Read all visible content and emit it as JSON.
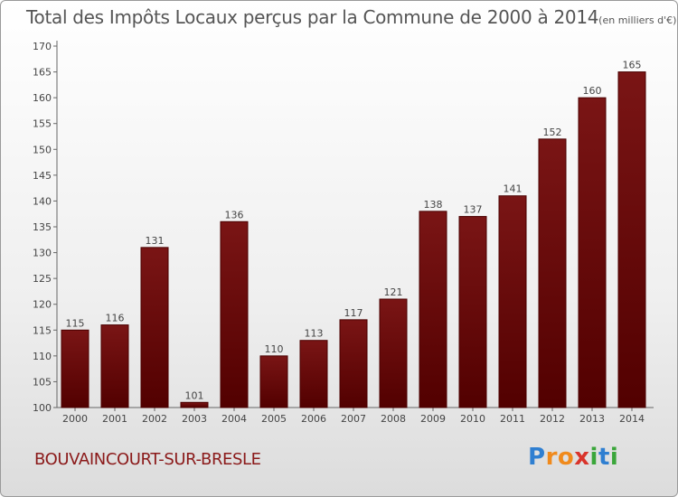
{
  "title": "Total des Impôts Locaux perçus par la Commune de 2000 à 2014",
  "title_unit": "(en milliers d'€)",
  "commune": "BOUVAINCOURT-SUR-BRESLE",
  "logo": {
    "text": "Proxiti",
    "letters": [
      {
        "ch": "P",
        "color": "#2f7fd1"
      },
      {
        "ch": "r",
        "color": "#f08a1c"
      },
      {
        "ch": "o",
        "color": "#f08a1c"
      },
      {
        "ch": "x",
        "color": "#d9342b"
      },
      {
        "ch": "i",
        "color": "#3aa63a"
      },
      {
        "ch": "t",
        "color": "#2f7fd1"
      },
      {
        "ch": "i",
        "color": "#3aa63a"
      }
    ]
  },
  "chart_data": {
    "type": "bar",
    "categories": [
      "2000",
      "2001",
      "2002",
      "2003",
      "2004",
      "2005",
      "2006",
      "2007",
      "2008",
      "2009",
      "2010",
      "2011",
      "2012",
      "2013",
      "2014"
    ],
    "values": [
      115,
      116,
      131,
      101,
      136,
      110,
      113,
      117,
      121,
      138,
      137,
      141,
      152,
      160,
      165
    ],
    "ylim": [
      100,
      170
    ],
    "yticks": [
      100,
      105,
      110,
      115,
      120,
      125,
      130,
      135,
      140,
      145,
      150,
      155,
      160,
      165,
      170
    ],
    "grid": false,
    "bar_color": "#7a1515",
    "bar_color_dark": "#520000"
  }
}
